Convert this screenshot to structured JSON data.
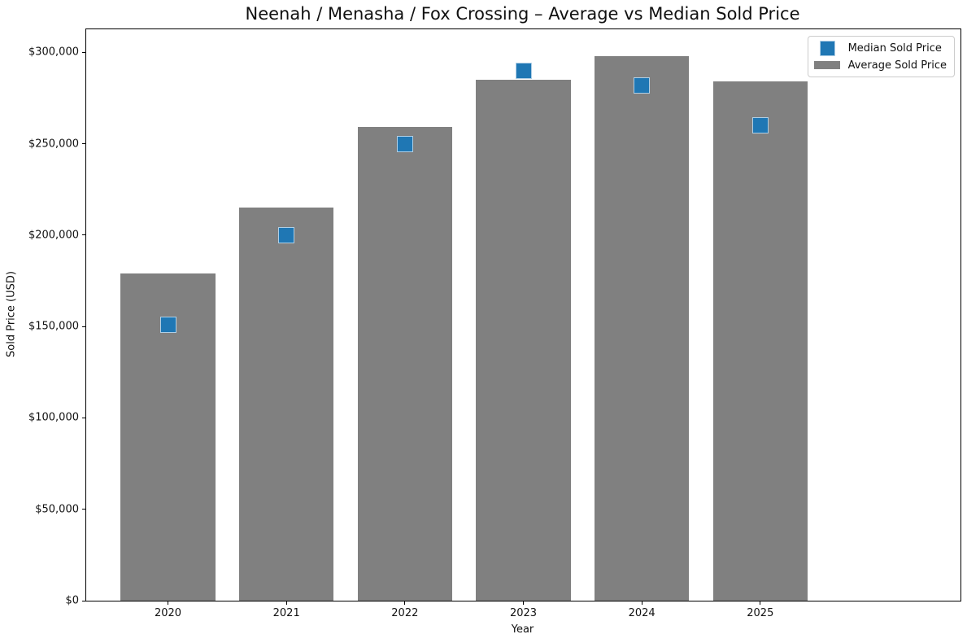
{
  "chart_data": {
    "type": "bar",
    "title": "Neenah / Menasha / Fox Crossing – Average vs Median Sold Price",
    "xlabel": "Year",
    "ylabel": "Sold Price (USD)",
    "categories": [
      "2020",
      "2021",
      "2022",
      "2023",
      "2024",
      "2025"
    ],
    "series": [
      {
        "name": "Median Sold Price",
        "type": "scatter",
        "marker": "square",
        "color": "#1f77b4",
        "values": [
          151000,
          200000,
          250000,
          290000,
          282000,
          260000
        ]
      },
      {
        "name": "Average Sold Price",
        "type": "bar",
        "color": "#808080",
        "values": [
          179000,
          215000,
          259000,
          285000,
          298000,
          284000
        ]
      }
    ],
    "ylim": [
      0,
      312600
    ],
    "yticks": [
      0,
      50000,
      100000,
      150000,
      200000,
      250000,
      300000
    ],
    "ytick_labels": [
      "$0",
      "$50,000",
      "$100,000",
      "$150,000",
      "$200,000",
      "$250,000",
      "$300,000"
    ],
    "grid": false,
    "legend_position": "upper right",
    "bar_width_fraction": 0.8,
    "x_axis_margin_units": 0.69
  }
}
